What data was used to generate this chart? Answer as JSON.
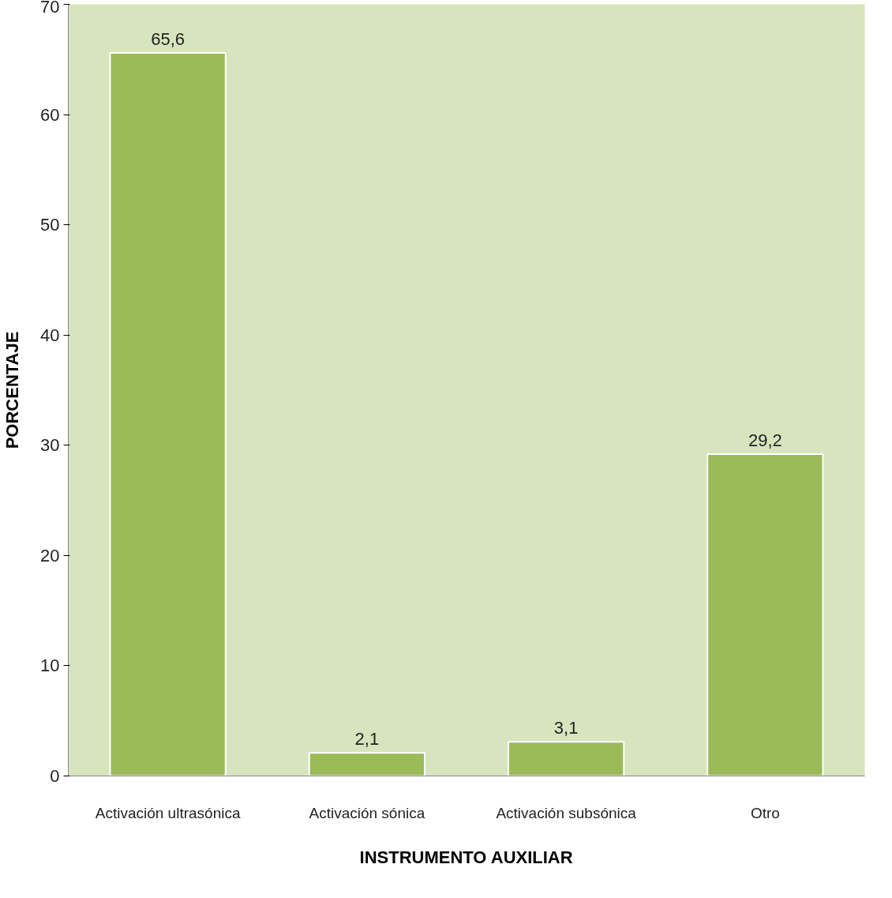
{
  "chart_data": {
    "type": "bar",
    "xlabel": "INSTRUMENTO AUXILIAR",
    "ylabel": "PORCENTAJE",
    "categories": [
      "Activación ultrasónica",
      "Activación sónica",
      "Activación subsónica",
      "Otro"
    ],
    "values": [
      65.6,
      2.1,
      3.1,
      29.2
    ],
    "value_labels": [
      "65,6",
      "2,1",
      "3,1",
      "29,2"
    ],
    "color": "#9bbb59",
    "ylim": [
      0,
      70
    ],
    "yticks": [
      0,
      10,
      20,
      30,
      40,
      50,
      60,
      70
    ],
    "grid": false
  }
}
